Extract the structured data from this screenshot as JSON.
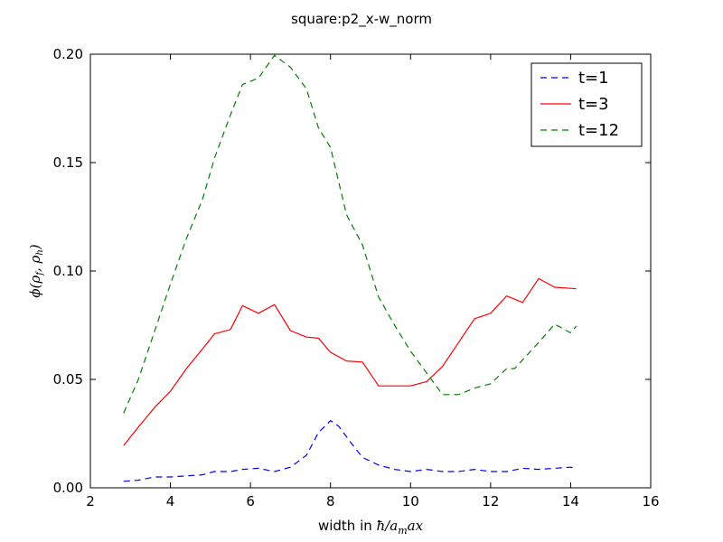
{
  "chart_data": {
    "type": "line",
    "title": "square:p2_x-w_norm",
    "xlabel_prefix": "width in ",
    "xlabel_math": "ħ/a",
    "xlabel_math_sub": "m",
    "xlabel_math_tail": "ax",
    "ylabel_math": "ϕ(ρ",
    "ylabel_sub1": "f",
    "ylabel_mid": ", ρ",
    "ylabel_sub2": "h",
    "ylabel_end": ")",
    "xlim": [
      2,
      16
    ],
    "ylim": [
      0.0,
      0.2
    ],
    "xticks": [
      "2",
      "4",
      "6",
      "8",
      "10",
      "12",
      "14",
      "16"
    ],
    "yticks": [
      "0.00",
      "0.05",
      "0.10",
      "0.15",
      "0.20"
    ],
    "legend_position": "top-right",
    "series": [
      {
        "name": "t=1",
        "color": "#0000ff",
        "dash": "dashed",
        "x": [
          2.83,
          3.2,
          3.6,
          4.0,
          4.4,
          4.8,
          5.1,
          5.5,
          5.8,
          6.2,
          6.6,
          7.0,
          7.4,
          7.7,
          8.0,
          8.2,
          8.5,
          8.8,
          9.2,
          9.6,
          10.0,
          10.4,
          10.8,
          11.2,
          11.6,
          12.0,
          12.4,
          12.8,
          13.2,
          13.6,
          14.0,
          14.14
        ],
        "y": [
          0.003,
          0.0035,
          0.005,
          0.005,
          0.0055,
          0.006,
          0.0075,
          0.0075,
          0.0085,
          0.009,
          0.0075,
          0.0095,
          0.015,
          0.0255,
          0.031,
          0.0285,
          0.021,
          0.014,
          0.0105,
          0.0085,
          0.0075,
          0.0085,
          0.0075,
          0.0075,
          0.0085,
          0.0075,
          0.0075,
          0.009,
          0.0085,
          0.009,
          0.0095,
          0.009
        ]
      },
      {
        "name": "t=3",
        "color": "#ff0000",
        "dash": "solid",
        "x": [
          2.83,
          3.2,
          3.6,
          4.0,
          4.4,
          4.8,
          5.1,
          5.5,
          5.8,
          6.2,
          6.6,
          7.0,
          7.4,
          7.7,
          8.0,
          8.4,
          8.8,
          9.2,
          9.6,
          10.0,
          10.4,
          10.8,
          11.2,
          11.6,
          12.0,
          12.4,
          12.8,
          13.2,
          13.6,
          14.0,
          14.14
        ],
        "y": [
          0.0195,
          0.028,
          0.037,
          0.0445,
          0.055,
          0.064,
          0.071,
          0.073,
          0.084,
          0.0805,
          0.0845,
          0.0725,
          0.0695,
          0.069,
          0.0625,
          0.0585,
          0.058,
          0.047,
          0.047,
          0.047,
          0.049,
          0.056,
          0.067,
          0.078,
          0.0805,
          0.0885,
          0.0855,
          0.0965,
          0.0925,
          0.092,
          0.0918
        ]
      },
      {
        "name": "t=12",
        "color": "#008000",
        "dash": "dashed",
        "x": [
          2.83,
          3.2,
          3.6,
          4.0,
          4.4,
          4.8,
          5.1,
          5.5,
          5.8,
          6.2,
          6.6,
          7.0,
          7.4,
          7.7,
          8.0,
          8.4,
          8.8,
          9.2,
          9.6,
          10.0,
          10.4,
          10.8,
          11.2,
          11.6,
          12.0,
          12.4,
          12.6,
          13.2,
          13.6,
          14.0,
          14.14
        ],
        "y": [
          0.0345,
          0.05,
          0.072,
          0.094,
          0.115,
          0.133,
          0.152,
          0.172,
          0.186,
          0.189,
          0.1995,
          0.194,
          0.184,
          0.166,
          0.157,
          0.126,
          0.112,
          0.088,
          0.075,
          0.063,
          0.053,
          0.043,
          0.043,
          0.046,
          0.048,
          0.055,
          0.055,
          0.067,
          0.0755,
          0.0715,
          0.0745
        ]
      }
    ]
  }
}
